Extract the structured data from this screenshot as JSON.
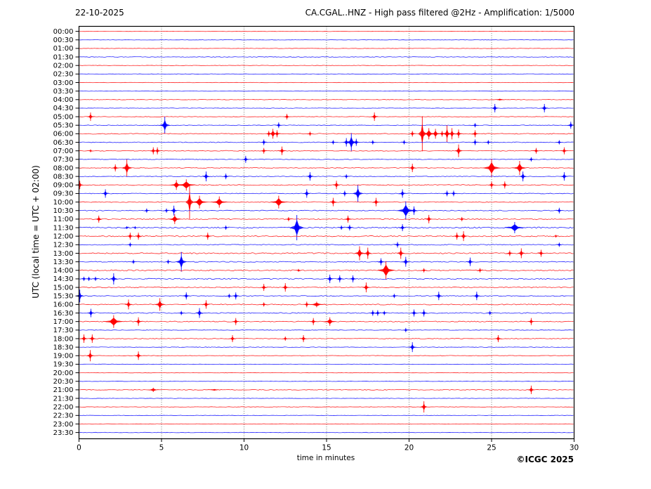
{
  "header": {
    "date": "22-10-2025",
    "title": "CA.CGAL..HNZ - High pass filtered @2Hz - Amplification: 1/5000"
  },
  "footer": {
    "copyright": "©ICGC 2025"
  },
  "chart_data": {
    "type": "line",
    "subtype": "helicorder",
    "title": "CA.CGAL..HNZ - High pass filtered @2Hz - Amplification: 1/5000",
    "date": "22-10-2025",
    "xlabel": "time in minutes",
    "ylabel": "UTC (local time = UTC + 02:00)",
    "x_range": [
      0,
      30
    ],
    "x_ticks": [
      0,
      5,
      10,
      15,
      20,
      25,
      30
    ],
    "grid_minutes": [
      5,
      10,
      15,
      20,
      25
    ],
    "grid_on": true,
    "legend": "none",
    "colors": {
      "even_trace": "#ff0000",
      "odd_trace": "#0000ff",
      "grid": "#555555",
      "axis": "#000000",
      "background": "#ffffff"
    },
    "events_format": "[start_minute, amplitude_px, spindle_halfwidth_px(optional)]",
    "rows": [
      {
        "time": "00:00",
        "color": "red",
        "noise": 0.25,
        "events": []
      },
      {
        "time": "00:30",
        "color": "blue",
        "noise": 0.25,
        "events": []
      },
      {
        "time": "01:00",
        "color": "red",
        "noise": 0.3,
        "events": []
      },
      {
        "time": "01:30",
        "color": "blue",
        "noise": 0.45,
        "events": []
      },
      {
        "time": "02:00",
        "color": "red",
        "noise": 0.3,
        "events": []
      },
      {
        "time": "02:30",
        "color": "blue",
        "noise": 0.3,
        "events": []
      },
      {
        "time": "03:00",
        "color": "red",
        "noise": 0.25,
        "events": []
      },
      {
        "time": "03:30",
        "color": "blue",
        "noise": 0.25,
        "events": []
      },
      {
        "time": "04:00",
        "color": "red",
        "noise": 0.4,
        "events": [
          [
            25.5,
            1.2,
            6
          ]
        ]
      },
      {
        "time": "04:30",
        "color": "blue",
        "noise": 0.35,
        "events": [
          [
            25.2,
            6
          ],
          [
            28.2,
            6
          ]
        ]
      },
      {
        "time": "05:00",
        "color": "red",
        "noise": 0.4,
        "events": [
          [
            0.7,
            6
          ],
          [
            12.6,
            4
          ],
          [
            17.9,
            6
          ]
        ]
      },
      {
        "time": "05:30",
        "color": "blue",
        "noise": 0.45,
        "events": [
          [
            5.2,
            12,
            3
          ],
          [
            12.1,
            4
          ],
          [
            24.0,
            3
          ],
          [
            29.8,
            5
          ]
        ]
      },
      {
        "time": "06:00",
        "color": "red",
        "noise": 0.6,
        "events": [
          [
            11.5,
            4
          ],
          [
            11.75,
            7,
            3
          ],
          [
            12.0,
            5
          ],
          [
            14.0,
            3
          ],
          [
            20.2,
            4
          ],
          [
            20.8,
            25
          ],
          [
            21.2,
            8,
            4
          ],
          [
            21.6,
            7,
            3
          ],
          [
            22.0,
            4
          ],
          [
            22.3,
            12
          ],
          [
            22.6,
            8
          ],
          [
            23.0,
            6
          ],
          [
            24.0,
            5
          ]
        ]
      },
      {
        "time": "06:30",
        "color": "blue",
        "noise": 0.5,
        "events": [
          [
            11.2,
            4
          ],
          [
            15.4,
            3
          ],
          [
            16.2,
            6
          ],
          [
            16.5,
            13,
            3
          ],
          [
            16.8,
            5
          ],
          [
            17.8,
            3
          ],
          [
            19.7,
            3
          ],
          [
            24.0,
            4
          ],
          [
            24.8,
            3
          ],
          [
            29.1,
            3
          ]
        ]
      },
      {
        "time": "07:00",
        "color": "red",
        "noise": 0.5,
        "events": [
          [
            0.7,
            2
          ],
          [
            4.5,
            5
          ],
          [
            4.75,
            5
          ],
          [
            11.2,
            4
          ],
          [
            12.3,
            6
          ],
          [
            23.0,
            9
          ],
          [
            27.7,
            4
          ],
          [
            29.4,
            5
          ]
        ]
      },
      {
        "time": "07:30",
        "color": "blue",
        "noise": 0.45,
        "events": [
          [
            10.1,
            5
          ],
          [
            27.4,
            3
          ]
        ]
      },
      {
        "time": "08:00",
        "color": "red",
        "noise": 0.5,
        "events": [
          [
            2.2,
            5
          ],
          [
            2.9,
            12,
            3
          ],
          [
            20.2,
            6
          ],
          [
            25.0,
            13,
            5
          ],
          [
            26.7,
            10,
            4
          ]
        ]
      },
      {
        "time": "08:30",
        "color": "blue",
        "noise": 0.5,
        "events": [
          [
            7.7,
            7
          ],
          [
            8.9,
            4
          ],
          [
            14.0,
            6
          ],
          [
            16.2,
            3
          ],
          [
            26.9,
            7
          ],
          [
            29.4,
            6
          ]
        ]
      },
      {
        "time": "09:00",
        "color": "red",
        "noise": 0.6,
        "events": [
          [
            0.05,
            6
          ],
          [
            5.9,
            7,
            4
          ],
          [
            6.5,
            8,
            6
          ],
          [
            15.6,
            6
          ],
          [
            25.0,
            5
          ],
          [
            25.8,
            5
          ]
        ]
      },
      {
        "time": "09:30",
        "color": "blue",
        "noise": 0.5,
        "events": [
          [
            1.6,
            6
          ],
          [
            13.8,
            6
          ],
          [
            16.1,
            4
          ],
          [
            16.9,
            12,
            3
          ],
          [
            19.6,
            6
          ],
          [
            22.3,
            4
          ],
          [
            22.7,
            4
          ]
        ]
      },
      {
        "time": "10:00",
        "color": "red",
        "noise": 0.6,
        "events": [
          [
            6.7,
            24
          ],
          [
            7.3,
            9,
            5
          ],
          [
            8.5,
            8,
            5
          ],
          [
            12.1,
            9,
            5
          ],
          [
            15.4,
            6
          ],
          [
            18.0,
            6
          ]
        ]
      },
      {
        "time": "10:30",
        "color": "blue",
        "noise": 0.6,
        "events": [
          [
            4.1,
            3
          ],
          [
            5.3,
            3
          ],
          [
            5.75,
            7
          ],
          [
            19.8,
            13,
            5
          ],
          [
            20.3,
            6
          ],
          [
            29.1,
            4
          ]
        ]
      },
      {
        "time": "11:00",
        "color": "red",
        "noise": 0.8,
        "events": [
          [
            1.2,
            5
          ],
          [
            5.8,
            7,
            4
          ],
          [
            12.7,
            3
          ],
          [
            16.3,
            5
          ],
          [
            21.2,
            6
          ],
          [
            23.2,
            3
          ]
        ]
      },
      {
        "time": "11:30",
        "color": "blue",
        "noise": 0.9,
        "events": [
          [
            2.9,
            2
          ],
          [
            3.4,
            2
          ],
          [
            8.9,
            3
          ],
          [
            13.2,
            18,
            4
          ],
          [
            15.9,
            3
          ],
          [
            16.4,
            4
          ],
          [
            19.6,
            5
          ],
          [
            26.4,
            8,
            6
          ]
        ]
      },
      {
        "time": "12:00",
        "color": "red",
        "noise": 0.8,
        "events": [
          [
            3.1,
            5
          ],
          [
            3.6,
            5
          ],
          [
            7.8,
            5
          ],
          [
            22.9,
            5
          ],
          [
            23.3,
            7
          ],
          [
            28.9,
            2
          ]
        ]
      },
      {
        "time": "12:30",
        "color": "blue",
        "noise": 0.6,
        "events": [
          [
            3.1,
            3
          ],
          [
            19.3,
            4
          ],
          [
            29.1,
            3
          ]
        ]
      },
      {
        "time": "13:00",
        "color": "red",
        "noise": 0.8,
        "events": [
          [
            17.0,
            10,
            3
          ],
          [
            17.5,
            8
          ],
          [
            19.5,
            8
          ],
          [
            26.1,
            4
          ],
          [
            26.8,
            7
          ],
          [
            28.0,
            5
          ]
        ]
      },
      {
        "time": "13:30",
        "color": "blue",
        "noise": 0.6,
        "events": [
          [
            3.3,
            3
          ],
          [
            5.4,
            3
          ],
          [
            6.2,
            14,
            3
          ],
          [
            18.3,
            5
          ],
          [
            19.8,
            7
          ],
          [
            23.7,
            6
          ]
        ]
      },
      {
        "time": "14:00",
        "color": "red",
        "noise": 0.8,
        "events": [
          [
            13.3,
            2
          ],
          [
            18.6,
            13,
            5
          ],
          [
            20.9,
            3
          ],
          [
            24.3,
            3
          ]
        ]
      },
      {
        "time": "14:30",
        "color": "blue",
        "noise": 0.8,
        "events": [
          [
            0.3,
            3
          ],
          [
            0.6,
            3
          ],
          [
            1.0,
            3
          ],
          [
            2.1,
            8
          ],
          [
            15.2,
            6
          ],
          [
            15.8,
            5
          ],
          [
            16.6,
            5
          ]
        ]
      },
      {
        "time": "15:00",
        "color": "red",
        "noise": 0.7,
        "events": [
          [
            11.2,
            5
          ],
          [
            12.5,
            6
          ],
          [
            17.4,
            7
          ]
        ]
      },
      {
        "time": "15:30",
        "color": "blue",
        "noise": 0.6,
        "events": [
          [
            0.05,
            9
          ],
          [
            6.5,
            5
          ],
          [
            9.1,
            3
          ],
          [
            9.5,
            5
          ],
          [
            19.1,
            3
          ],
          [
            21.8,
            6
          ],
          [
            24.1,
            6
          ]
        ]
      },
      {
        "time": "16:00",
        "color": "red",
        "noise": 0.7,
        "events": [
          [
            3.0,
            7
          ],
          [
            4.9,
            9,
            3
          ],
          [
            7.7,
            6
          ],
          [
            11.2,
            3
          ],
          [
            13.8,
            4
          ],
          [
            14.4,
            4,
            6
          ]
        ]
      },
      {
        "time": "16:30",
        "color": "blue",
        "noise": 0.7,
        "events": [
          [
            0.72,
            6
          ],
          [
            6.2,
            3
          ],
          [
            7.3,
            7
          ],
          [
            17.8,
            4
          ],
          [
            18.1,
            4
          ],
          [
            18.5,
            3
          ],
          [
            20.3,
            5
          ],
          [
            20.9,
            5
          ],
          [
            24.9,
            3
          ]
        ]
      },
      {
        "time": "17:00",
        "color": "red",
        "noise": 0.6,
        "events": [
          [
            2.1,
            9,
            6
          ],
          [
            3.6,
            6
          ],
          [
            9.5,
            5
          ],
          [
            14.2,
            5
          ],
          [
            15.2,
            6,
            4
          ],
          [
            27.4,
            5
          ]
        ]
      },
      {
        "time": "17:30",
        "color": "blue",
        "noise": 0.4,
        "events": [
          [
            19.8,
            3
          ]
        ]
      },
      {
        "time": "18:00",
        "color": "red",
        "noise": 0.5,
        "events": [
          [
            0.3,
            6
          ],
          [
            0.8,
            6
          ],
          [
            9.3,
            5
          ],
          [
            12.5,
            3
          ],
          [
            13.6,
            5
          ],
          [
            25.4,
            5
          ]
        ]
      },
      {
        "time": "18:30",
        "color": "blue",
        "noise": 0.4,
        "events": [
          [
            20.2,
            7
          ]
        ]
      },
      {
        "time": "19:00",
        "color": "red",
        "noise": 0.4,
        "events": [
          [
            0.68,
            8
          ],
          [
            3.6,
            6
          ]
        ]
      },
      {
        "time": "19:30",
        "color": "blue",
        "noise": 0.3,
        "events": []
      },
      {
        "time": "20:00",
        "color": "red",
        "noise": 0.3,
        "events": []
      },
      {
        "time": "20:30",
        "color": "blue",
        "noise": 0.3,
        "events": []
      },
      {
        "time": "21:00",
        "color": "red",
        "noise": 0.5,
        "events": [
          [
            4.5,
            3,
            5
          ],
          [
            8.2,
            1,
            6
          ],
          [
            27.4,
            6
          ]
        ]
      },
      {
        "time": "21:30",
        "color": "blue",
        "noise": 0.3,
        "events": []
      },
      {
        "time": "22:00",
        "color": "red",
        "noise": 0.35,
        "events": [
          [
            20.9,
            8
          ]
        ]
      },
      {
        "time": "22:30",
        "color": "blue",
        "noise": 0.3,
        "events": []
      },
      {
        "time": "23:00",
        "color": "red",
        "noise": 0.3,
        "events": []
      },
      {
        "time": "23:30",
        "color": "blue",
        "noise": 0.3,
        "events": []
      }
    ]
  }
}
